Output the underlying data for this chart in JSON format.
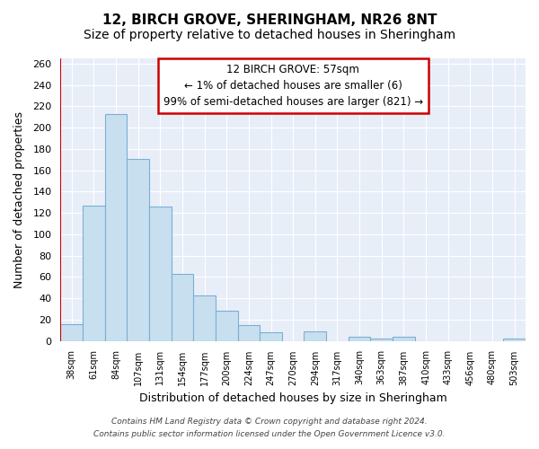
{
  "title": "12, BIRCH GROVE, SHERINGHAM, NR26 8NT",
  "subtitle": "Size of property relative to detached houses in Sheringham",
  "xlabel": "Distribution of detached houses by size in Sheringham",
  "ylabel": "Number of detached properties",
  "bar_labels": [
    "38sqm",
    "61sqm",
    "84sqm",
    "107sqm",
    "131sqm",
    "154sqm",
    "177sqm",
    "200sqm",
    "224sqm",
    "247sqm",
    "270sqm",
    "294sqm",
    "317sqm",
    "340sqm",
    "363sqm",
    "387sqm",
    "410sqm",
    "433sqm",
    "456sqm",
    "480sqm",
    "503sqm"
  ],
  "bar_values": [
    16,
    127,
    213,
    171,
    126,
    63,
    43,
    28,
    15,
    8,
    0,
    9,
    0,
    4,
    2,
    4,
    0,
    0,
    0,
    0,
    2
  ],
  "bar_color": "#c8dff0",
  "bar_edge_color": "#7bafd4",
  "highlight_color": "#cc0000",
  "annotation_title": "12 BIRCH GROVE: 57sqm",
  "annotation_line1": "← 1% of detached houses are smaller (6)",
  "annotation_line2": "99% of semi-detached houses are larger (821) →",
  "annotation_box_color": "#ffffff",
  "annotation_box_edge": "#cc0000",
  "ylim": [
    0,
    265
  ],
  "yticks": [
    0,
    20,
    40,
    60,
    80,
    100,
    120,
    140,
    160,
    180,
    200,
    220,
    240,
    260
  ],
  "footnote1": "Contains HM Land Registry data © Crown copyright and database right 2024.",
  "footnote2": "Contains public sector information licensed under the Open Government Licence v3.0.",
  "bg_color": "#ffffff",
  "plot_bg_color": "#e8eef8",
  "grid_color": "#ffffff",
  "title_fontsize": 11,
  "subtitle_fontsize": 10
}
